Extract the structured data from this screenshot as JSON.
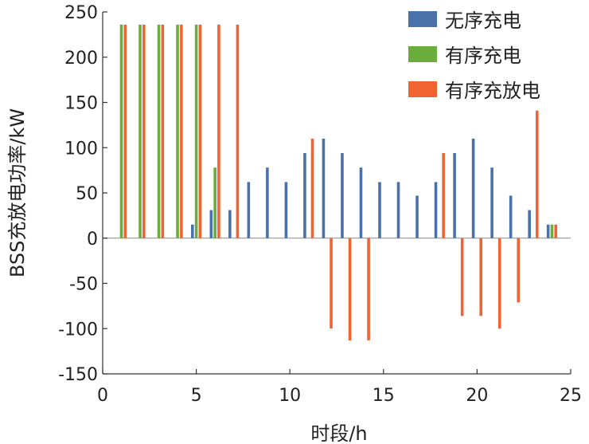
{
  "chart_data": {
    "type": "bar",
    "title": "",
    "xlabel": "时段/h",
    "ylabel": "BSS充放电功率/kW",
    "xlim": [
      0,
      25
    ],
    "ylim": [
      -150,
      250
    ],
    "xticks": [
      0,
      5,
      10,
      15,
      20,
      25
    ],
    "yticks": [
      -150,
      -100,
      -50,
      0,
      50,
      100,
      150,
      200,
      250
    ],
    "legend_position": "top-right",
    "x": [
      1,
      2,
      3,
      4,
      5,
      6,
      7,
      8,
      9,
      10,
      11,
      12,
      13,
      14,
      15,
      16,
      17,
      18,
      19,
      20,
      21,
      22,
      23,
      24
    ],
    "series": [
      {
        "name": "无序充电",
        "color": "#4a72a8",
        "values": [
          0,
          0,
          0,
          0,
          15,
          31,
          31,
          62,
          78,
          62,
          94,
          110,
          94,
          78,
          62,
          62,
          47,
          62,
          94,
          110,
          78,
          47,
          31,
          15
        ]
      },
      {
        "name": "有序充电",
        "color": "#6aad3b",
        "values": [
          236,
          236,
          236,
          236,
          236,
          78,
          0,
          0,
          0,
          0,
          0,
          0,
          0,
          0,
          0,
          0,
          0,
          0,
          0,
          0,
          0,
          0,
          0,
          15
        ]
      },
      {
        "name": "有序充放电",
        "color": "#f06432",
        "values": [
          236,
          236,
          236,
          236,
          236,
          236,
          236,
          0,
          0,
          0,
          110,
          -100,
          -113,
          -113,
          0,
          0,
          0,
          94,
          -86,
          -86,
          -100,
          -71,
          141,
          15
        ]
      }
    ]
  }
}
